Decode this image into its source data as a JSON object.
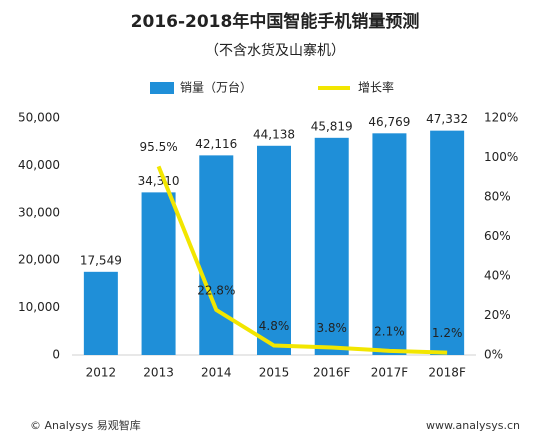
{
  "chart_data": {
    "type": "bar",
    "title": "2016-2018年中国智能手机销量预测",
    "subtitle": "（不含水货及山寨机）",
    "categories": [
      "2012",
      "2013",
      "2014",
      "2015",
      "2016F",
      "2017F",
      "2018F"
    ],
    "series": [
      {
        "name": "销量（万台）",
        "type": "bar",
        "color": "#1f8fd8",
        "axis": "y",
        "values": [
          17549,
          34310,
          42116,
          44138,
          45819,
          46769,
          47332
        ],
        "value_labels": [
          "17,549",
          "34,310",
          "42,116",
          "44,138",
          "45,819",
          "46,769",
          "47,332"
        ]
      },
      {
        "name": "增长率",
        "type": "line",
        "color": "#f2e600",
        "axis": "y2",
        "values": [
          null,
          95.5,
          22.8,
          4.8,
          3.8,
          2.1,
          1.2
        ],
        "value_labels": [
          null,
          "95.5%",
          "22.8%",
          "4.8%",
          "3.8%",
          "2.1%",
          "1.2%"
        ]
      }
    ],
    "ylim": [
      0,
      50000
    ],
    "yticks": [
      0,
      {
        "value": 10000,
        "label": "10,000"
      },
      {
        "value": 20000,
        "label": "20,000"
      },
      {
        "value": 30000,
        "label": "30,000"
      },
      {
        "value": 40000,
        "label": "40,000"
      },
      {
        "value": 50000,
        "label": "50,000"
      }
    ],
    "y2lim": [
      0,
      120
    ],
    "y2ticks": [
      {
        "value": 0,
        "label": "0%"
      },
      {
        "value": 20,
        "label": "20%"
      },
      {
        "value": 40,
        "label": "40%"
      },
      {
        "value": 60,
        "label": "60%"
      },
      {
        "value": 80,
        "label": "80%"
      },
      {
        "value": 100,
        "label": "100%"
      },
      {
        "value": 120,
        "label": "120%"
      }
    ],
    "grid": false,
    "legend": "top",
    "source": "© Analysys 易观智库",
    "website": "www.analysys.cn"
  }
}
